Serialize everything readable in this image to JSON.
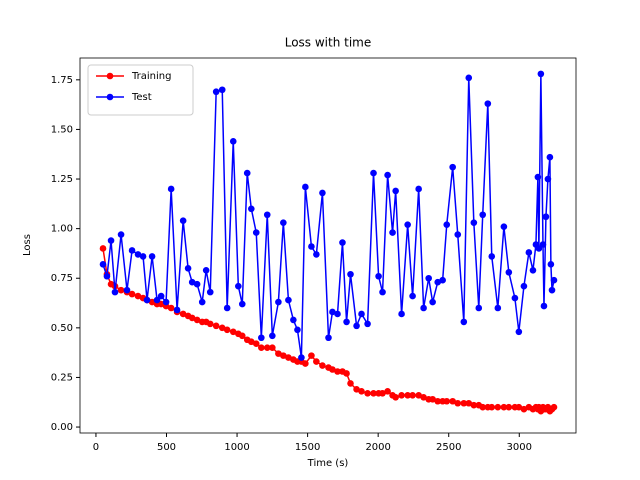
{
  "chart_data": {
    "type": "line",
    "title": "Loss with time",
    "x_label": "Time (s)",
    "y_label": "Loss",
    "x": [
      50,
      78,
      107,
      135,
      178,
      220,
      256,
      298,
      334,
      362,
      398,
      433,
      462,
      497,
      533,
      575,
      618,
      653,
      682,
      717,
      753,
      781,
      810,
      852,
      895,
      930,
      973,
      1009,
      1037,
      1072,
      1101,
      1136,
      1172,
      1214,
      1250,
      1293,
      1328,
      1364,
      1399,
      1428,
      1456,
      1484,
      1527,
      1562,
      1605,
      1648,
      1676,
      1712,
      1747,
      1776,
      1804,
      1847,
      1882,
      1925,
      1967,
      2003,
      2031,
      2067,
      2102,
      2124,
      2166,
      2209,
      2244,
      2287,
      2322,
      2358,
      2386,
      2422,
      2457,
      2486,
      2528,
      2564,
      2607,
      2642,
      2678,
      2713,
      2741,
      2777,
      2805,
      2848,
      2891,
      2926,
      2969,
      2997,
      3033,
      3068,
      3097,
      3118,
      3132,
      3139,
      3153,
      3168,
      3175,
      3189,
      3203,
      3217,
      3224,
      3232,
      3246
    ],
    "series": [
      {
        "name": "Training",
        "color": "#ff0000",
        "values": [
          0.9,
          0.77,
          0.72,
          0.71,
          0.69,
          0.68,
          0.67,
          0.66,
          0.65,
          0.64,
          0.63,
          0.62,
          0.62,
          0.61,
          0.6,
          0.58,
          0.57,
          0.56,
          0.55,
          0.54,
          0.53,
          0.53,
          0.52,
          0.51,
          0.5,
          0.49,
          0.48,
          0.47,
          0.46,
          0.44,
          0.43,
          0.42,
          0.4,
          0.4,
          0.4,
          0.37,
          0.36,
          0.35,
          0.34,
          0.33,
          0.33,
          0.32,
          0.36,
          0.33,
          0.31,
          0.3,
          0.29,
          0.28,
          0.28,
          0.27,
          0.22,
          0.19,
          0.18,
          0.17,
          0.17,
          0.17,
          0.17,
          0.18,
          0.16,
          0.15,
          0.16,
          0.16,
          0.16,
          0.16,
          0.15,
          0.14,
          0.14,
          0.13,
          0.13,
          0.13,
          0.13,
          0.12,
          0.12,
          0.12,
          0.11,
          0.11,
          0.1,
          0.1,
          0.1,
          0.1,
          0.1,
          0.1,
          0.1,
          0.1,
          0.09,
          0.1,
          0.09,
          0.1,
          0.09,
          0.1,
          0.08,
          0.1,
          0.09,
          0.09,
          0.1,
          0.08,
          0.09,
          0.09,
          0.1
        ]
      },
      {
        "name": "Test",
        "color": "#0000ff",
        "values": [
          0.82,
          0.76,
          0.94,
          0.68,
          0.97,
          0.69,
          0.89,
          0.87,
          0.86,
          0.64,
          0.86,
          0.64,
          0.66,
          0.63,
          1.2,
          0.59,
          1.04,
          0.8,
          0.73,
          0.72,
          0.63,
          0.79,
          0.68,
          1.69,
          1.7,
          0.6,
          1.44,
          0.71,
          0.62,
          1.28,
          1.1,
          0.98,
          0.45,
          1.07,
          0.46,
          0.63,
          1.03,
          0.64,
          0.54,
          0.49,
          0.35,
          1.21,
          0.91,
          0.87,
          1.18,
          0.45,
          0.58,
          0.57,
          0.93,
          0.53,
          0.77,
          0.51,
          0.57,
          0.52,
          1.28,
          0.76,
          0.68,
          1.27,
          0.98,
          1.19,
          0.57,
          1.02,
          0.66,
          1.2,
          0.6,
          0.75,
          0.63,
          0.73,
          0.74,
          1.02,
          1.31,
          0.97,
          0.53,
          1.76,
          1.03,
          0.6,
          1.07,
          1.63,
          0.86,
          0.6,
          1.01,
          0.78,
          0.65,
          0.48,
          0.71,
          0.88,
          0.79,
          0.92,
          1.26,
          0.9,
          1.78,
          0.92,
          0.61,
          1.06,
          1.25,
          1.36,
          0.82,
          0.69,
          0.74
        ]
      }
    ],
    "xlim": [
      -113,
      3402
    ],
    "ylim": [
      -0.03,
      1.86
    ],
    "xticks": [
      0,
      500,
      1000,
      1500,
      2000,
      2500,
      3000
    ],
    "yticks": [
      {
        "value": 0,
        "label": "0.00"
      },
      {
        "value": 0.25,
        "label": "0.25"
      },
      {
        "value": 0.5,
        "label": "0.50"
      },
      {
        "value": 0.75,
        "label": "0.75"
      },
      {
        "value": 1,
        "label": "1.00"
      },
      {
        "value": 1.25,
        "label": "1.25"
      },
      {
        "value": 1.5,
        "label": "1.50"
      },
      {
        "value": 1.75,
        "label": "1.75"
      }
    ],
    "grid": false,
    "legend": "upper-left"
  }
}
